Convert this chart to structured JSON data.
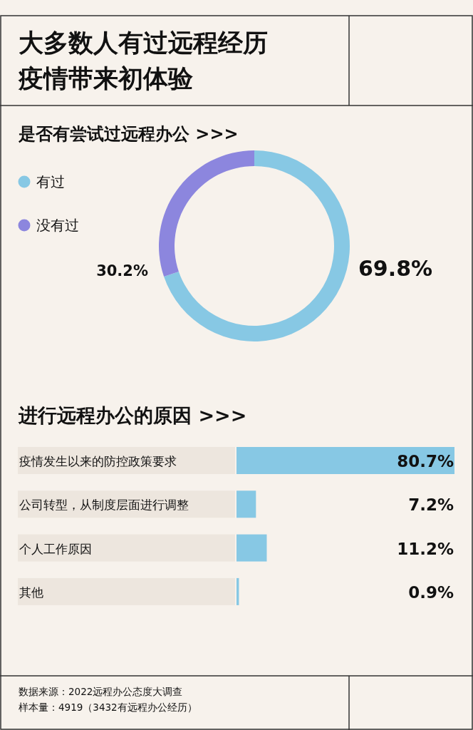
{
  "chart_data": [
    {
      "type": "donut",
      "title": "大多数人有过远程经历疫情带来初体验",
      "subtitle": "是否有尝试过远程办公 >>>",
      "categories": [
        "有过",
        "没有过"
      ],
      "values": [
        69.8,
        30.2
      ],
      "colors": [
        "#87c8e4",
        "#8c86de"
      ],
      "value_labels": [
        "69.8%",
        "30.2%"
      ],
      "legend": "top left"
    },
    {
      "type": "bar",
      "orientation": "horizontal",
      "title": "进行远程办公的原因 >>>",
      "categories": [
        "疫情发生以来的防控政策要求",
        "公司转型，从制度层面进行调整",
        "个人工作原因",
        "其他"
      ],
      "values": [
        80.7,
        7.2,
        11.2,
        0.9
      ],
      "color": "#87c8e4",
      "xlim": [
        0,
        80.7
      ],
      "value_labels": [
        "80.7%",
        "7.2%",
        "11.2%",
        "0.9%"
      ],
      "annotations": [
        "数据来源：2022远程办公态度大调查",
        "样本量：4919（3432有远程办公经历）"
      ]
    }
  ]
}
